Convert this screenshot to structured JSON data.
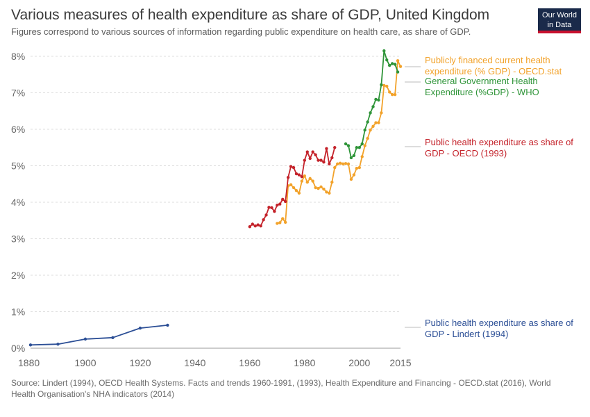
{
  "title": "Various measures of health expenditure as share of GDP, United Kingdom",
  "subtitle": "Figures correspond to various sources of information regarding public expenditure on health care, as share of GDP.",
  "logo": {
    "line1": "Our World",
    "line2": "in Data"
  },
  "source": "Source: Lindert (1994), OECD Health Systems. Facts and trends 1960-1991, (1993), Health Expenditure and Financing - OECD.stat (2016), World Health Organisation's NHA indicators (2014)",
  "colors": {
    "oecdstat": "#f2a22a",
    "who": "#2e9438",
    "oecd1993": "#c4222a",
    "lindert": "#2c4f96"
  },
  "chart_data": {
    "type": "line",
    "xlim": [
      1880,
      2015
    ],
    "ylim": [
      0,
      8
    ],
    "x_ticks": [
      1880,
      1900,
      1920,
      1940,
      1960,
      1980,
      2000,
      2015
    ],
    "y_ticks": [
      0,
      1,
      2,
      3,
      4,
      5,
      6,
      7,
      8
    ],
    "y_tick_labels": [
      "0%",
      "1%",
      "2%",
      "3%",
      "4%",
      "5%",
      "6%",
      "7%",
      "8%"
    ],
    "grid": "horizontal dashed",
    "legend": "right, labels at line ends",
    "series": [
      {
        "key": "oecdstat",
        "name_lines": [
          "Publicly financed current health",
          "expenditure (% GDP) - OECD.stat"
        ],
        "x": [
          1970,
          1971,
          1972,
          1973,
          1974,
          1975,
          1976,
          1977,
          1978,
          1979,
          1980,
          1981,
          1982,
          1983,
          1984,
          1985,
          1986,
          1987,
          1988,
          1989,
          1990,
          1991,
          1992,
          1993,
          1994,
          1995,
          1996,
          1997,
          1998,
          1999,
          2000,
          2001,
          2002,
          2003,
          2004,
          2005,
          2006,
          2007,
          2008,
          2009,
          2010,
          2011,
          2012,
          2013,
          2014,
          2015
        ],
        "y": [
          3.42,
          3.44,
          3.55,
          3.45,
          4.45,
          4.48,
          4.4,
          4.32,
          4.25,
          4.58,
          4.72,
          4.55,
          4.65,
          4.58,
          4.4,
          4.38,
          4.42,
          4.36,
          4.28,
          4.25,
          4.55,
          4.95,
          5.05,
          5.07,
          5.05,
          5.06,
          5.05,
          4.63,
          4.75,
          4.93,
          4.95,
          5.25,
          5.55,
          5.75,
          5.98,
          6.08,
          6.18,
          6.18,
          6.45,
          7.2,
          7.18,
          7.02,
          6.95,
          6.95,
          7.88,
          7.72
        ]
      },
      {
        "key": "who",
        "name_lines": [
          "General Government Health",
          "Expenditure (%GDP) - WHO"
        ],
        "x": [
          1995,
          1996,
          1997,
          1998,
          1999,
          2000,
          2001,
          2002,
          2003,
          2004,
          2005,
          2006,
          2007,
          2008,
          2009,
          2010,
          2011,
          2012,
          2013,
          2014
        ],
        "y": [
          5.6,
          5.55,
          5.22,
          5.28,
          5.5,
          5.5,
          5.6,
          5.98,
          6.2,
          6.45,
          6.62,
          6.82,
          6.8,
          7.22,
          8.15,
          7.9,
          7.75,
          7.8,
          7.78,
          7.57
        ]
      },
      {
        "key": "oecd1993",
        "name_lines": [
          "Public health expenditure as share of",
          "GDP - OECD (1993)"
        ],
        "x": [
          1960,
          1961,
          1962,
          1963,
          1964,
          1965,
          1966,
          1967,
          1968,
          1969,
          1970,
          1971,
          1972,
          1973,
          1974,
          1975,
          1976,
          1977,
          1978,
          1979,
          1980,
          1981,
          1982,
          1983,
          1984,
          1985,
          1986,
          1987,
          1988,
          1989,
          1990,
          1991
        ],
        "y": [
          3.33,
          3.4,
          3.35,
          3.38,
          3.35,
          3.52,
          3.65,
          3.86,
          3.85,
          3.75,
          3.92,
          3.95,
          4.08,
          4.02,
          4.68,
          4.98,
          4.95,
          4.78,
          4.75,
          4.7,
          5.15,
          5.38,
          5.2,
          5.38,
          5.3,
          5.15,
          5.15,
          5.1,
          5.47,
          5.05,
          5.22,
          5.5
        ]
      },
      {
        "key": "lindert",
        "name_lines": [
          "Public health expenditure as share of",
          "GDP - Lindert (1994)"
        ],
        "x": [
          1880,
          1890,
          1900,
          1910,
          1920,
          1930
        ],
        "y": [
          0.09,
          0.11,
          0.25,
          0.29,
          0.55,
          0.63
        ]
      }
    ]
  }
}
